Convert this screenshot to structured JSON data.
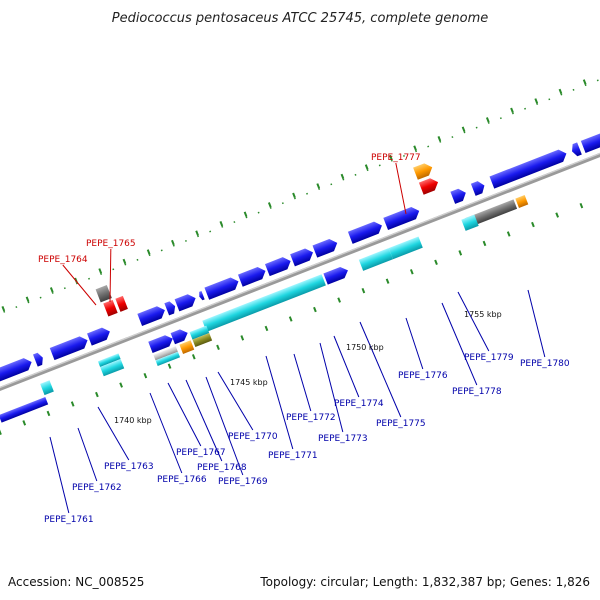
{
  "title": "Pediococcus pentosaceus ATCC 25745, complete genome",
  "accession": "Accession: NC_008525",
  "summary": "Topology: circular; Length: 1,832,387 bp; Genes: 1,826",
  "colors": {
    "forward": "#1a1aee",
    "reverse_cyan": "#1fd6e0",
    "rna": "#ee0000",
    "orange": "#ff9900",
    "gray": "#707070",
    "backbone": "#9a9a9a",
    "ticks": "#2a8a2a",
    "label_red": "#cc0000",
    "label_blue": "#0000aa"
  },
  "scale_labels": [
    "1740 kbp",
    "1745 kbp",
    "1750 kbp",
    "1755 kbp"
  ],
  "gene_labels": [
    {
      "name": "PEPE_1761",
      "color": "blue"
    },
    {
      "name": "PEPE_1762",
      "color": "blue"
    },
    {
      "name": "PEPE_1763",
      "color": "blue"
    },
    {
      "name": "PEPE_1764",
      "color": "red"
    },
    {
      "name": "PEPE_1765",
      "color": "red"
    },
    {
      "name": "PEPE_1766",
      "color": "blue"
    },
    {
      "name": "PEPE_1767",
      "color": "blue"
    },
    {
      "name": "PEPE_1768",
      "color": "blue"
    },
    {
      "name": "PEPE_1769",
      "color": "blue"
    },
    {
      "name": "PEPE_1770",
      "color": "blue"
    },
    {
      "name": "PEPE_1771",
      "color": "blue"
    },
    {
      "name": "PEPE_1772",
      "color": "blue"
    },
    {
      "name": "PEPE_1773",
      "color": "blue"
    },
    {
      "name": "PEPE_1774",
      "color": "blue"
    },
    {
      "name": "PEPE_1775",
      "color": "blue"
    },
    {
      "name": "PEPE_1776",
      "color": "blue"
    },
    {
      "name": "PEPE_1777",
      "color": "red"
    },
    {
      "name": "PEPE_1778",
      "color": "blue"
    },
    {
      "name": "PEPE_1779",
      "color": "blue"
    },
    {
      "name": "PEPE_1780",
      "color": "blue"
    }
  ]
}
